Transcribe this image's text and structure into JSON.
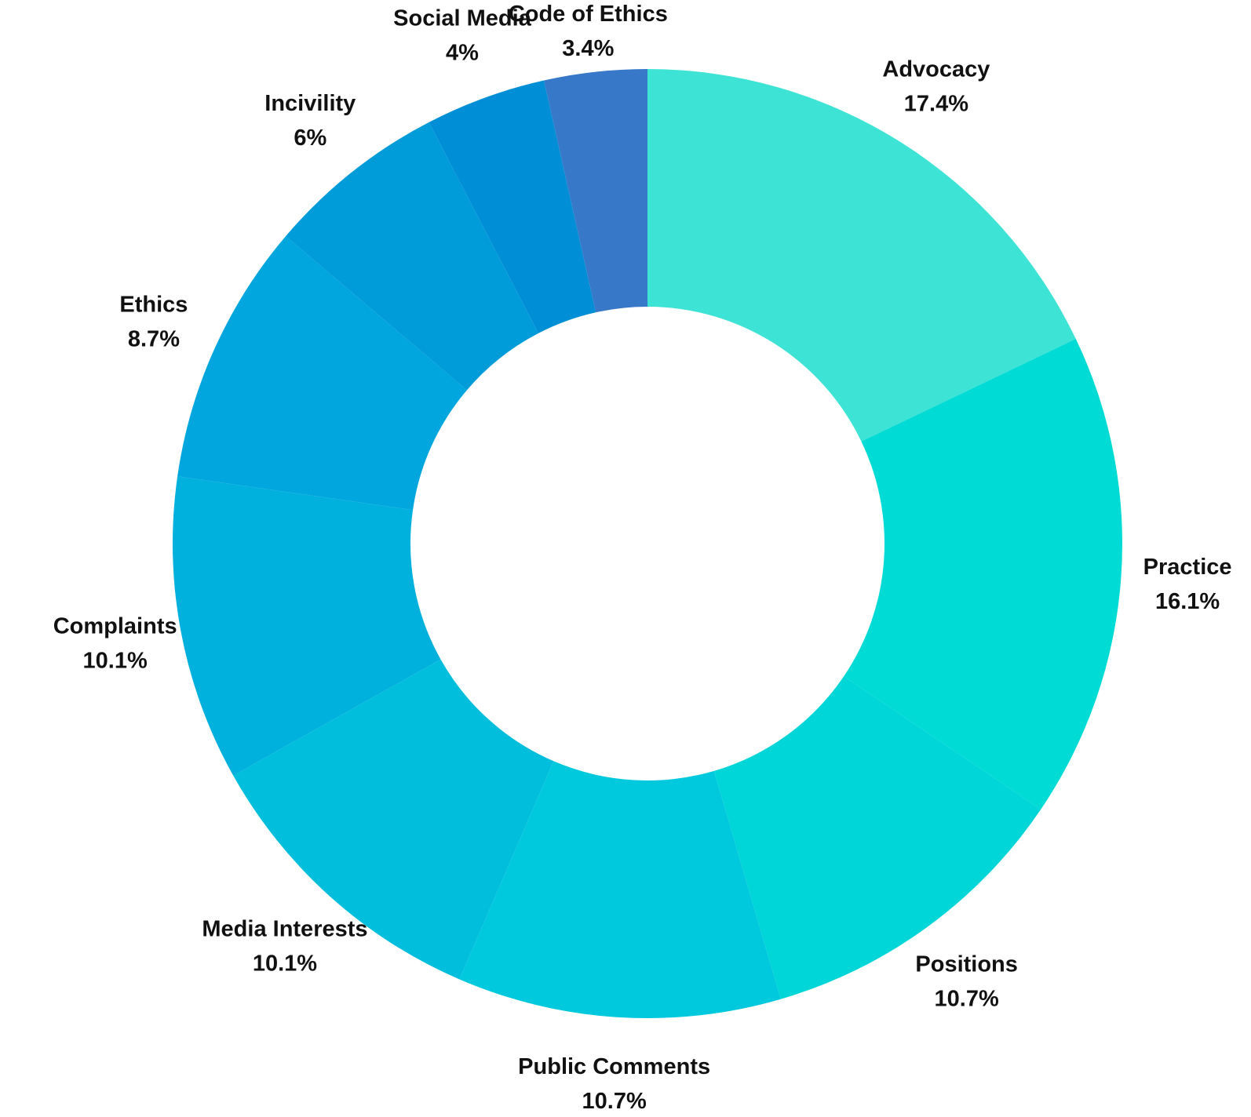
{
  "chart_data": {
    "type": "pie",
    "variant": "donut",
    "title": "",
    "legend": "none",
    "start": "top",
    "direction": "clockwise",
    "slices": [
      {
        "label": "Advocacy",
        "value": 17.4,
        "value_label": "17.4%",
        "color": "#3de3d4"
      },
      {
        "label": "Practice",
        "value": 16.1,
        "value_label": "16.1%",
        "color": "#00dbd6"
      },
      {
        "label": "Positions",
        "value": 10.7,
        "value_label": "10.7%",
        "color": "#00d5d8"
      },
      {
        "label": "Public Comments",
        "value": 10.7,
        "value_label": "10.7%",
        "color": "#00c9dd"
      },
      {
        "label": "Media Interests",
        "value": 10.1,
        "value_label": "10.1%",
        "color": "#00bedc"
      },
      {
        "label": "Complaints",
        "value": 10.1,
        "value_label": "10.1%",
        "color": "#00b0dd"
      },
      {
        "label": "Ethics",
        "value": 8.7,
        "value_label": "8.7%",
        "color": "#00a6dd"
      },
      {
        "label": "Incivility",
        "value": 6,
        "value_label": "6%",
        "color": "#009bd9"
      },
      {
        "label": "Social Media",
        "value": 4,
        "value_label": "4%",
        "color": "#008fd6"
      },
      {
        "label": "Code of Ethics",
        "value": 3.4,
        "value_label": "3.4%",
        "color": "#3878c8"
      }
    ]
  }
}
